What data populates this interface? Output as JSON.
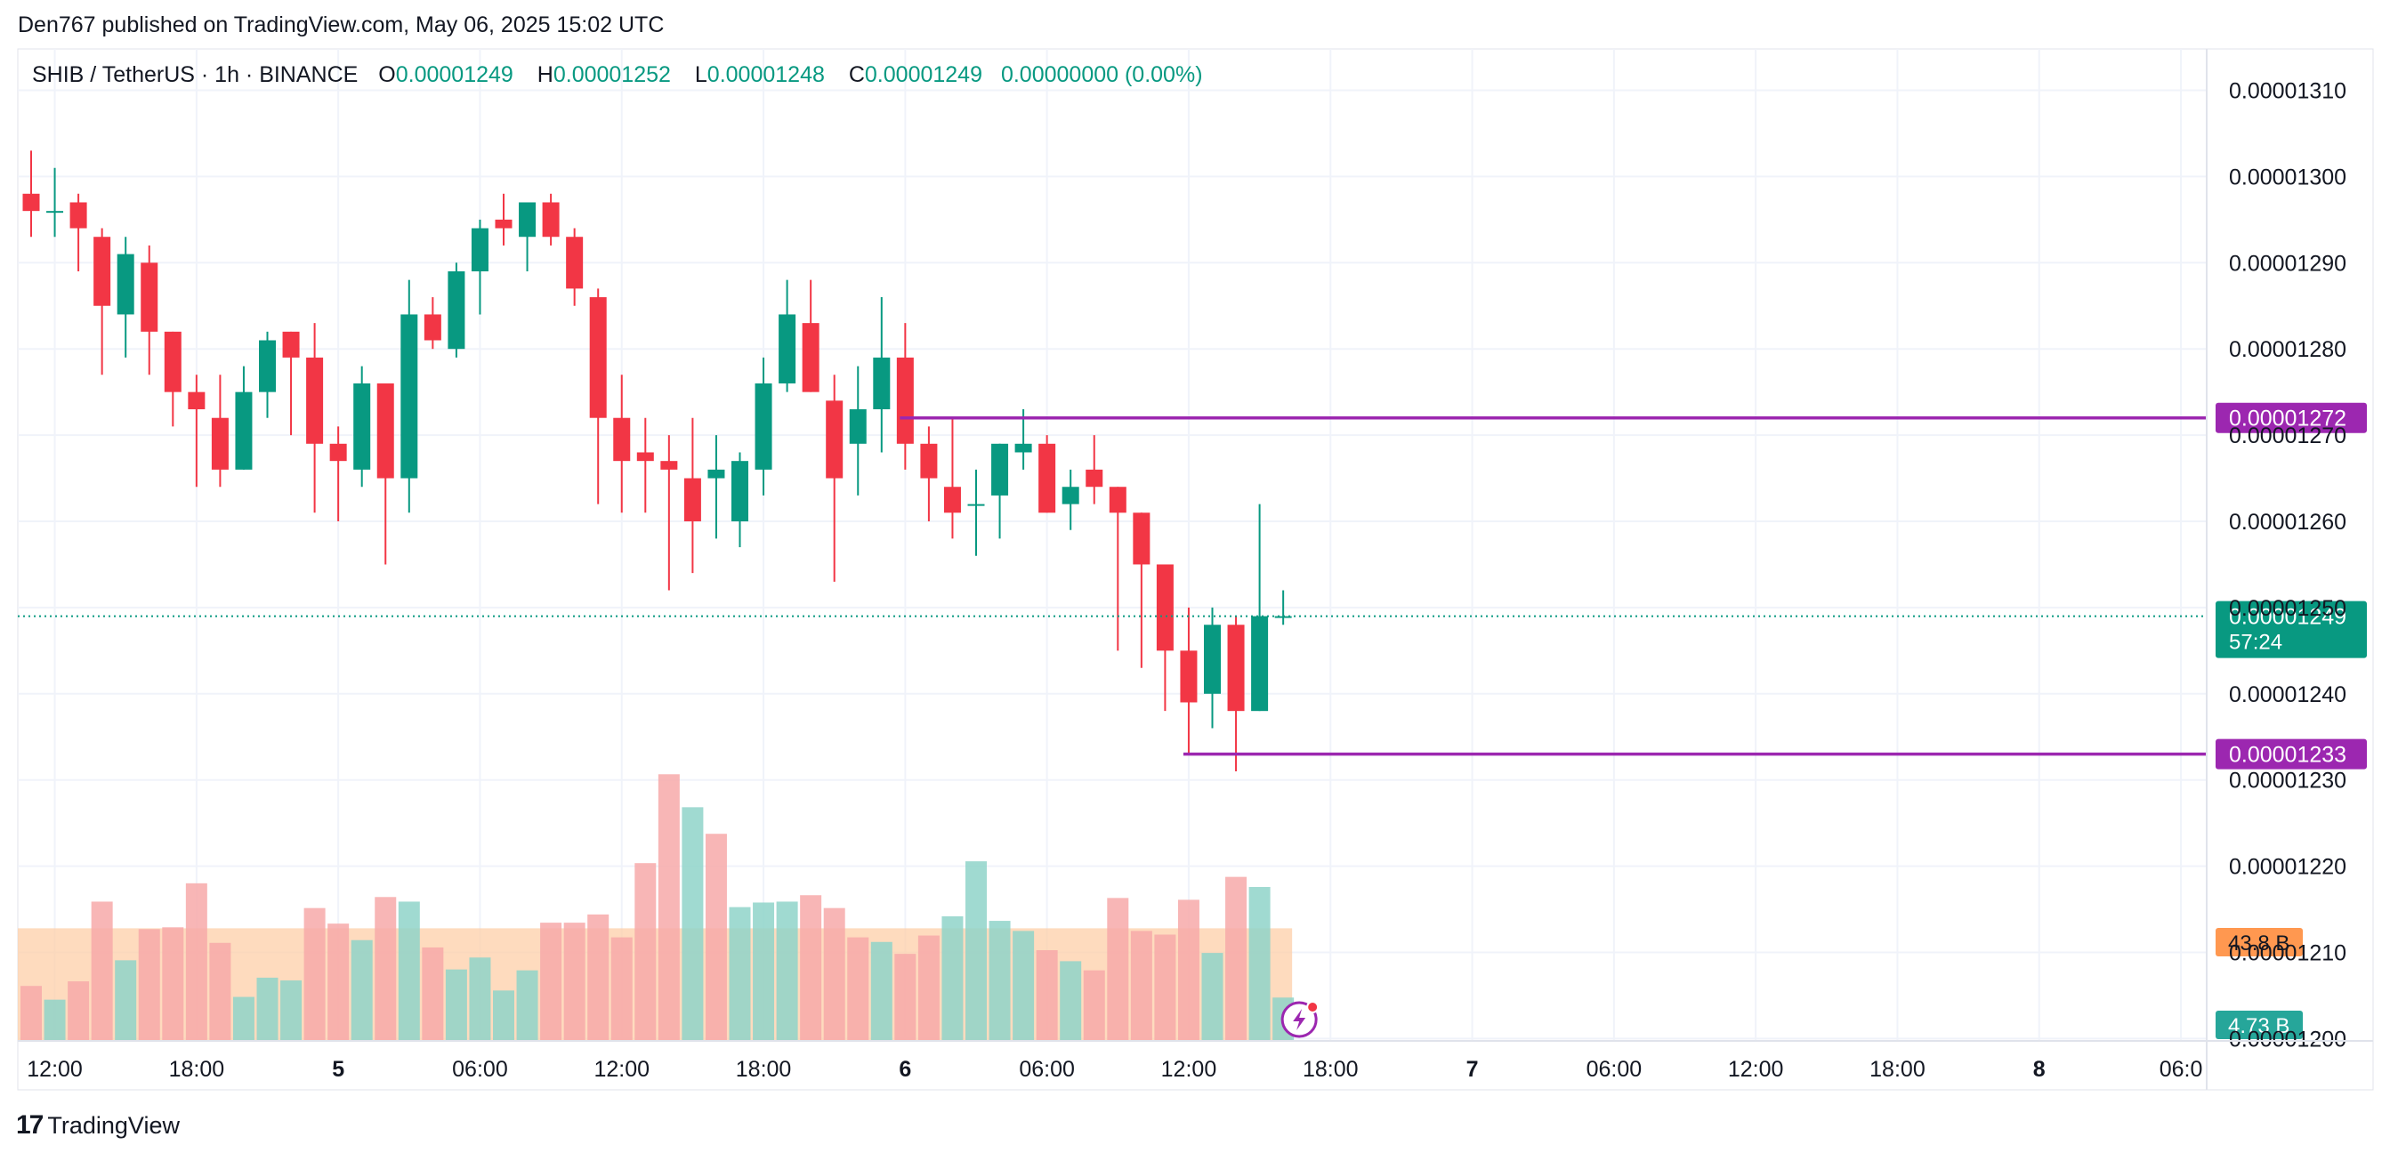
{
  "header": {
    "published": "Den767 published on TradingView.com, May 06, 2025 15:02 UTC"
  },
  "legend": {
    "symbol": "SHIB / TetherUS · 1h · BINANCE",
    "o_label": "O",
    "o_value": "0.00001249",
    "h_label": "H",
    "h_value": "0.00001252",
    "l_label": "L",
    "l_value": "0.00001248",
    "c_label": "C",
    "c_value": "0.00001249",
    "change": "0.00000000 (0.00%)"
  },
  "footer": {
    "brand": "TradingView",
    "logo": "17"
  },
  "colors": {
    "up": "#089981",
    "down": "#f23645",
    "vol_up": "#8fd3c9",
    "vol_down": "#f7a9a9",
    "vol_ma_fill": "#fdcfa8",
    "level": "#9c27b0",
    "grid": "#f0f3fa",
    "last_label": "#089981",
    "vol_label": "#ff9850",
    "vol2_label": "#26a69a"
  },
  "chart_data": {
    "type": "candlestick",
    "interval": "1h",
    "y_ticks": [
      "0.00001310",
      "0.00001300",
      "0.00001290",
      "0.00001280",
      "0.00001270",
      "0.00001260",
      "0.00001250",
      "0.00001240",
      "0.00001230",
      "0.00001220",
      "0.00001210",
      "0.00001200"
    ],
    "ylim": [
      1.2e-05,
      1.31e-05
    ],
    "x_ticks": [
      {
        "label": "12:00",
        "i": 1
      },
      {
        "label": "18:00",
        "i": 7
      },
      {
        "label": "5",
        "i": 13
      },
      {
        "label": "06:00",
        "i": 19
      },
      {
        "label": "12:00",
        "i": 25
      },
      {
        "label": "18:00",
        "i": 31
      },
      {
        "label": "6",
        "i": 37
      },
      {
        "label": "06:00",
        "i": 43
      },
      {
        "label": "12:00",
        "i": 49
      },
      {
        "label": "18:00",
        "i": 55
      },
      {
        "label": "7",
        "i": 61
      },
      {
        "label": "06:00",
        "i": 67
      },
      {
        "label": "12:00",
        "i": 73
      },
      {
        "label": "18:00",
        "i": 79
      },
      {
        "label": "8",
        "i": 85
      },
      {
        "label": "06:0",
        "i": 91
      }
    ],
    "candles": [
      [
        1.298e-05,
        1.303e-05,
        1.293e-05,
        1.296e-05
      ],
      [
        1.296e-05,
        1.301e-05,
        1.293e-05,
        1.296e-05
      ],
      [
        1.297e-05,
        1.298e-05,
        1.289e-05,
        1.294e-05
      ],
      [
        1.293e-05,
        1.294e-05,
        1.277e-05,
        1.285e-05
      ],
      [
        1.284e-05,
        1.293e-05,
        1.279e-05,
        1.291e-05
      ],
      [
        1.29e-05,
        1.292e-05,
        1.277e-05,
        1.282e-05
      ],
      [
        1.282e-05,
        1.282e-05,
        1.271e-05,
        1.275e-05
      ],
      [
        1.275e-05,
        1.277e-05,
        1.264e-05,
        1.273e-05
      ],
      [
        1.272e-05,
        1.277e-05,
        1.264e-05,
        1.266e-05
      ],
      [
        1.266e-05,
        1.278e-05,
        1.266e-05,
        1.275e-05
      ],
      [
        1.275e-05,
        1.282e-05,
        1.272e-05,
        1.281e-05
      ],
      [
        1.282e-05,
        1.282e-05,
        1.27e-05,
        1.279e-05
      ],
      [
        1.279e-05,
        1.283e-05,
        1.261e-05,
        1.269e-05
      ],
      [
        1.269e-05,
        1.271e-05,
        1.26e-05,
        1.267e-05
      ],
      [
        1.266e-05,
        1.278e-05,
        1.264e-05,
        1.276e-05
      ],
      [
        1.276e-05,
        1.276e-05,
        1.255e-05,
        1.265e-05
      ],
      [
        1.265e-05,
        1.288e-05,
        1.261e-05,
        1.284e-05
      ],
      [
        1.284e-05,
        1.286e-05,
        1.28e-05,
        1.281e-05
      ],
      [
        1.28e-05,
        1.29e-05,
        1.279e-05,
        1.289e-05
      ],
      [
        1.289e-05,
        1.295e-05,
        1.284e-05,
        1.294e-05
      ],
      [
        1.295e-05,
        1.298e-05,
        1.292e-05,
        1.294e-05
      ],
      [
        1.293e-05,
        1.297e-05,
        1.289e-05,
        1.297e-05
      ],
      [
        1.297e-05,
        1.298e-05,
        1.292e-05,
        1.293e-05
      ],
      [
        1.293e-05,
        1.294e-05,
        1.285e-05,
        1.287e-05
      ],
      [
        1.286e-05,
        1.287e-05,
        1.262e-05,
        1.272e-05
      ],
      [
        1.272e-05,
        1.277e-05,
        1.261e-05,
        1.267e-05
      ],
      [
        1.268e-05,
        1.272e-05,
        1.261e-05,
        1.267e-05
      ],
      [
        1.267e-05,
        1.27e-05,
        1.252e-05,
        1.266e-05
      ],
      [
        1.265e-05,
        1.272e-05,
        1.254e-05,
        1.26e-05
      ],
      [
        1.265e-05,
        1.27e-05,
        1.258e-05,
        1.266e-05
      ],
      [
        1.26e-05,
        1.268e-05,
        1.257e-05,
        1.267e-05
      ],
      [
        1.266e-05,
        1.279e-05,
        1.263e-05,
        1.276e-05
      ],
      [
        1.276e-05,
        1.288e-05,
        1.275e-05,
        1.284e-05
      ],
      [
        1.283e-05,
        1.288e-05,
        1.275e-05,
        1.275e-05
      ],
      [
        1.274e-05,
        1.277e-05,
        1.253e-05,
        1.265e-05
      ],
      [
        1.269e-05,
        1.278e-05,
        1.263e-05,
        1.273e-05
      ],
      [
        1.273e-05,
        1.286e-05,
        1.268e-05,
        1.279e-05
      ],
      [
        1.279e-05,
        1.283e-05,
        1.266e-05,
        1.269e-05
      ],
      [
        1.269e-05,
        1.271e-05,
        1.26e-05,
        1.265e-05
      ],
      [
        1.264e-05,
        1.272e-05,
        1.258e-05,
        1.261e-05
      ],
      [
        1.262e-05,
        1.266e-05,
        1.256e-05,
        1.262e-05
      ],
      [
        1.263e-05,
        1.269e-05,
        1.258e-05,
        1.269e-05
      ],
      [
        1.268e-05,
        1.273e-05,
        1.266e-05,
        1.269e-05
      ],
      [
        1.269e-05,
        1.27e-05,
        1.261e-05,
        1.261e-05
      ],
      [
        1.262e-05,
        1.266e-05,
        1.259e-05,
        1.264e-05
      ],
      [
        1.266e-05,
        1.27e-05,
        1.262e-05,
        1.264e-05
      ],
      [
        1.264e-05,
        1.264e-05,
        1.245e-05,
        1.261e-05
      ],
      [
        1.261e-05,
        1.261e-05,
        1.243e-05,
        1.255e-05
      ],
      [
        1.255e-05,
        1.255e-05,
        1.238e-05,
        1.245e-05
      ],
      [
        1.245e-05,
        1.25e-05,
        1.233e-05,
        1.239e-05
      ],
      [
        1.24e-05,
        1.25e-05,
        1.236e-05,
        1.248e-05
      ],
      [
        1.248e-05,
        1.249e-05,
        1.231e-05,
        1.238e-05
      ],
      [
        1.238e-05,
        1.262e-05,
        1.238e-05,
        1.249e-05
      ],
      [
        1.249e-05,
        1.252e-05,
        1.248e-05,
        1.249e-05
      ]
    ],
    "volumes": [
      [
        6.0,
        "down"
      ],
      [
        4.5,
        "up"
      ],
      [
        6.5,
        "down"
      ],
      [
        15.2,
        "down"
      ],
      [
        8.8,
        "up"
      ],
      [
        12.2,
        "down"
      ],
      [
        12.4,
        "down"
      ],
      [
        17.2,
        "down"
      ],
      [
        10.7,
        "down"
      ],
      [
        4.8,
        "up"
      ],
      [
        6.9,
        "up"
      ],
      [
        6.6,
        "up"
      ],
      [
        14.5,
        "down"
      ],
      [
        12.8,
        "down"
      ],
      [
        11.0,
        "up"
      ],
      [
        15.7,
        "down"
      ],
      [
        15.2,
        "up"
      ],
      [
        10.2,
        "down"
      ],
      [
        7.8,
        "up"
      ],
      [
        9.1,
        "up"
      ],
      [
        5.5,
        "up"
      ],
      [
        7.7,
        "up"
      ],
      [
        12.9,
        "down"
      ],
      [
        12.9,
        "down"
      ],
      [
        13.8,
        "down"
      ],
      [
        11.3,
        "down"
      ],
      [
        19.4,
        "down"
      ],
      [
        29.1,
        "down"
      ],
      [
        25.5,
        "up"
      ],
      [
        22.6,
        "down"
      ],
      [
        14.6,
        "up"
      ],
      [
        15.1,
        "up"
      ],
      [
        15.2,
        "up"
      ],
      [
        15.9,
        "down"
      ],
      [
        14.5,
        "down"
      ],
      [
        11.3,
        "down"
      ],
      [
        10.8,
        "up"
      ],
      [
        9.5,
        "down"
      ],
      [
        11.5,
        "down"
      ],
      [
        13.6,
        "up"
      ],
      [
        19.6,
        "up"
      ],
      [
        13.1,
        "up"
      ],
      [
        12.0,
        "up"
      ],
      [
        9.9,
        "down"
      ],
      [
        8.7,
        "up"
      ],
      [
        7.7,
        "down"
      ],
      [
        15.6,
        "down"
      ],
      [
        12.0,
        "down"
      ],
      [
        11.6,
        "down"
      ],
      [
        15.4,
        "down"
      ],
      [
        9.6,
        "up"
      ],
      [
        17.9,
        "down"
      ],
      [
        16.8,
        "up"
      ],
      [
        4.73,
        "up"
      ]
    ],
    "volume_ma": 12.0,
    "levels": [
      {
        "value": 1.272e-05,
        "label": "0.00001272",
        "from_index": 37
      },
      {
        "value": 1.233e-05,
        "label": "0.00001233",
        "from_index": 49
      }
    ],
    "last_price": {
      "value": 1.249e-05,
      "label": "0.00001249",
      "countdown": "57:24"
    },
    "volume_labels": {
      "ma": "43.8 B",
      "last": "4.73 B"
    }
  }
}
